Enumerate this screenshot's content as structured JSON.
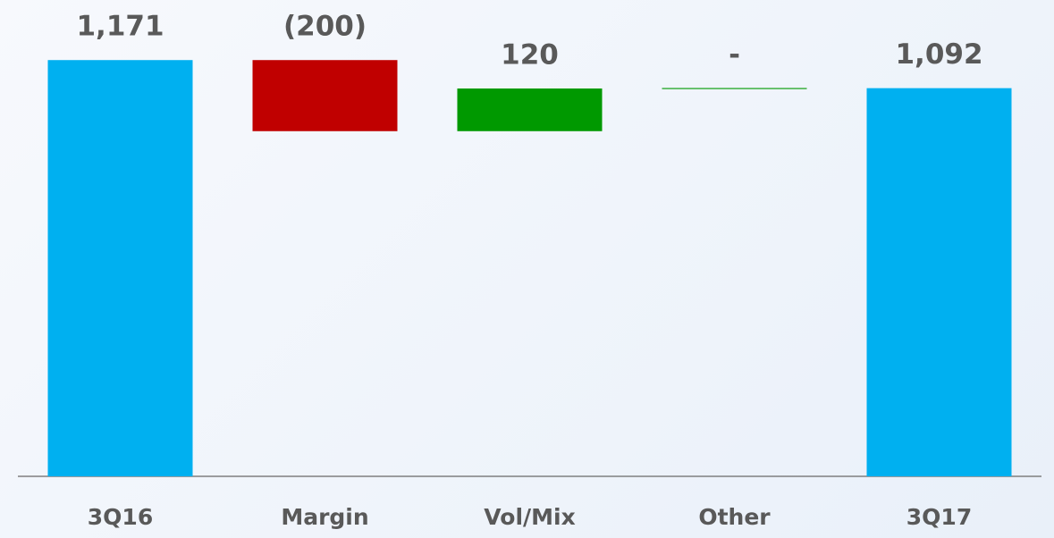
{
  "chart_data": {
    "type": "waterfall",
    "categories": [
      "3Q16",
      "Margin",
      "Vol/Mix",
      "Other",
      "3Q17"
    ],
    "values": [
      1171,
      -200,
      120,
      0,
      1092
    ],
    "value_labels": [
      "1,171",
      "(200)",
      "120",
      "-",
      "1,092"
    ],
    "totals": [
      true,
      false,
      false,
      false,
      true
    ],
    "colors": {
      "total": "#00b0f0",
      "increase": "#009900",
      "decrease": "#c00000"
    },
    "ylim": [
      0,
      1340
    ]
  }
}
